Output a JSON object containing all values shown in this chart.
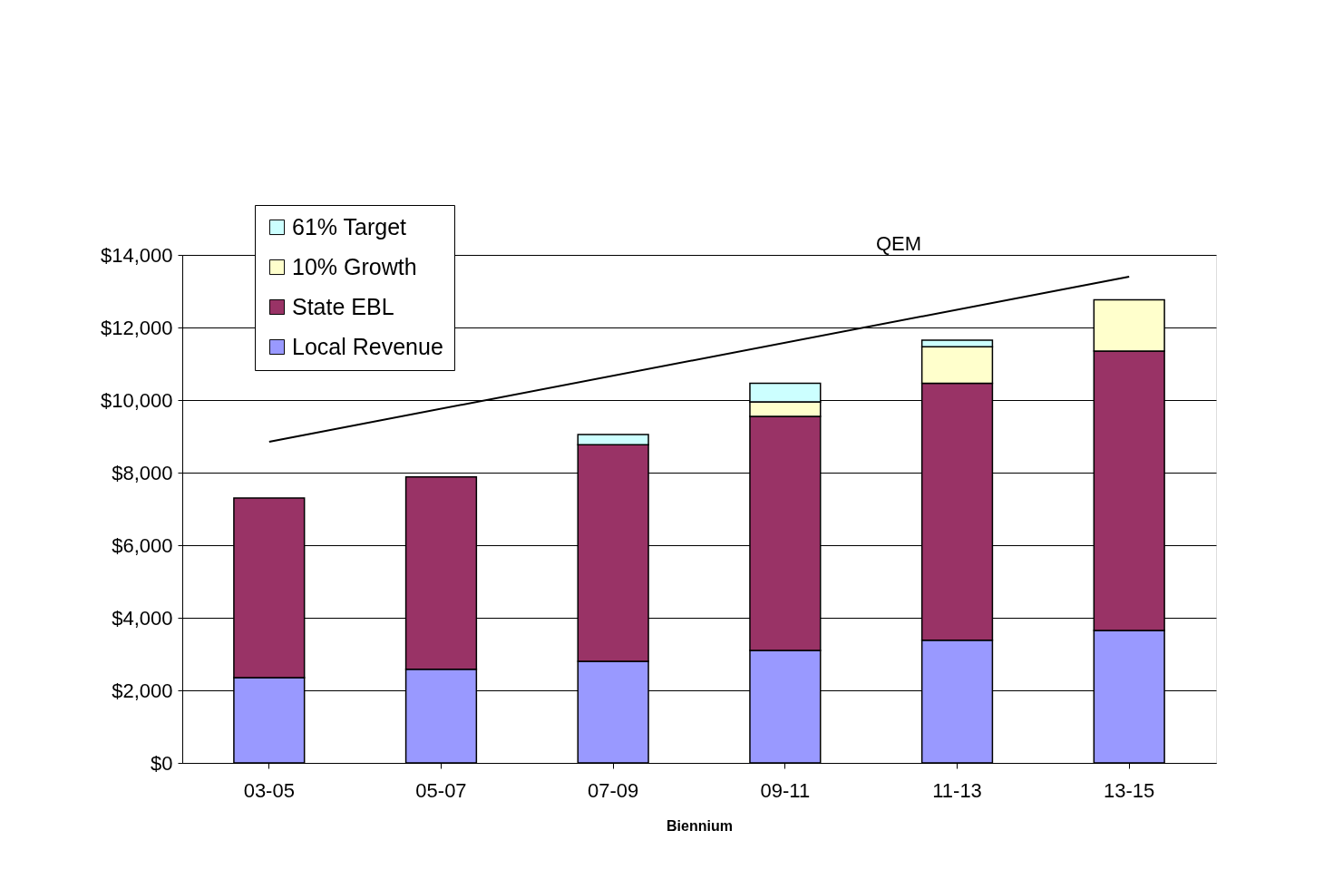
{
  "chart_data": {
    "type": "bar",
    "stacked": true,
    "categories": [
      "03-05",
      "05-07",
      "07-09",
      "09-11",
      "11-13",
      "13-15"
    ],
    "xlabel": "Biennium",
    "series": [
      {
        "name": "Local Revenue",
        "color": "#9999ff",
        "values": [
          2350,
          2580,
          2800,
          3100,
          3380,
          3650
        ]
      },
      {
        "name": "State EBL",
        "color": "#993366",
        "values": [
          4950,
          5300,
          5970,
          6450,
          7080,
          7700
        ]
      },
      {
        "name": "10% Growth",
        "color": "#ffffcc",
        "values": [
          null,
          null,
          null,
          400,
          1010,
          1410
        ]
      },
      {
        "name": "61% Target",
        "color": "#ccffff",
        "values": [
          null,
          null,
          280,
          510,
          180,
          null
        ]
      },
      {
        "type": "line",
        "color": "#000000",
        "values": [
          8850,
          null,
          null,
          null,
          null,
          13400
        ]
      }
    ],
    "ylim": [
      0,
      14000
    ],
    "yticks": [
      {
        "value": 0,
        "label": "$0"
      },
      {
        "value": 2000,
        "label": "$2,000"
      },
      {
        "value": 4000,
        "label": "$4,000"
      },
      {
        "value": 6000,
        "label": "$6,000"
      },
      {
        "value": 8000,
        "label": "$8,000"
      },
      {
        "value": 10000,
        "label": "$10,000"
      },
      {
        "value": 12000,
        "label": "$12,000"
      },
      {
        "value": 14000,
        "label": "$14,000"
      }
    ],
    "annotations": [
      "QEM"
    ],
    "grid": "y",
    "legend": "top left"
  }
}
